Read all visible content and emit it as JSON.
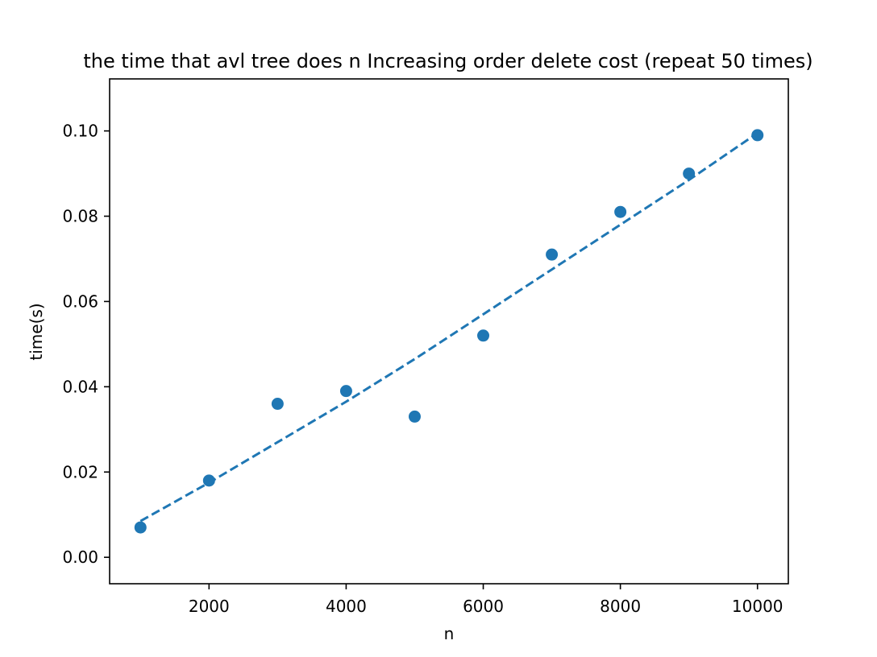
{
  "chart_data": {
    "type": "scatter",
    "title": "the time that avl tree does n Increasing order delete cost (repeat 50 times)",
    "xlabel": "n",
    "ylabel": "time(s)",
    "xlim": [
      550,
      10450
    ],
    "ylim": [
      -0.0062,
      0.1122
    ],
    "xticks": [
      2000,
      4000,
      6000,
      8000,
      10000
    ],
    "xtick_labels": [
      "2000",
      "4000",
      "6000",
      "8000",
      "10000"
    ],
    "yticks": [
      0.0,
      0.02,
      0.04,
      0.06,
      0.08,
      0.1
    ],
    "ytick_labels": [
      "0.00",
      "0.02",
      "0.04",
      "0.06",
      "0.08",
      "0.10"
    ],
    "grid": false,
    "color": "#1f77b4",
    "series": [
      {
        "kind": "scatter",
        "x": [
          1000,
          2000,
          3000,
          4000,
          5000,
          6000,
          7000,
          8000,
          9000,
          10000
        ],
        "y": [
          0.007,
          0.018,
          0.036,
          0.039,
          0.033,
          0.052,
          0.071,
          0.081,
          0.09,
          0.099
        ]
      },
      {
        "kind": "fit-line",
        "style": "dashed",
        "x": [
          1000,
          2000,
          3000,
          4000,
          5000,
          6000,
          7000,
          8000,
          9000,
          10000
        ],
        "y": [
          0.0085,
          0.0175,
          0.027,
          0.0365,
          0.0465,
          0.057,
          0.0675,
          0.078,
          0.0885,
          0.0995
        ]
      }
    ]
  }
}
